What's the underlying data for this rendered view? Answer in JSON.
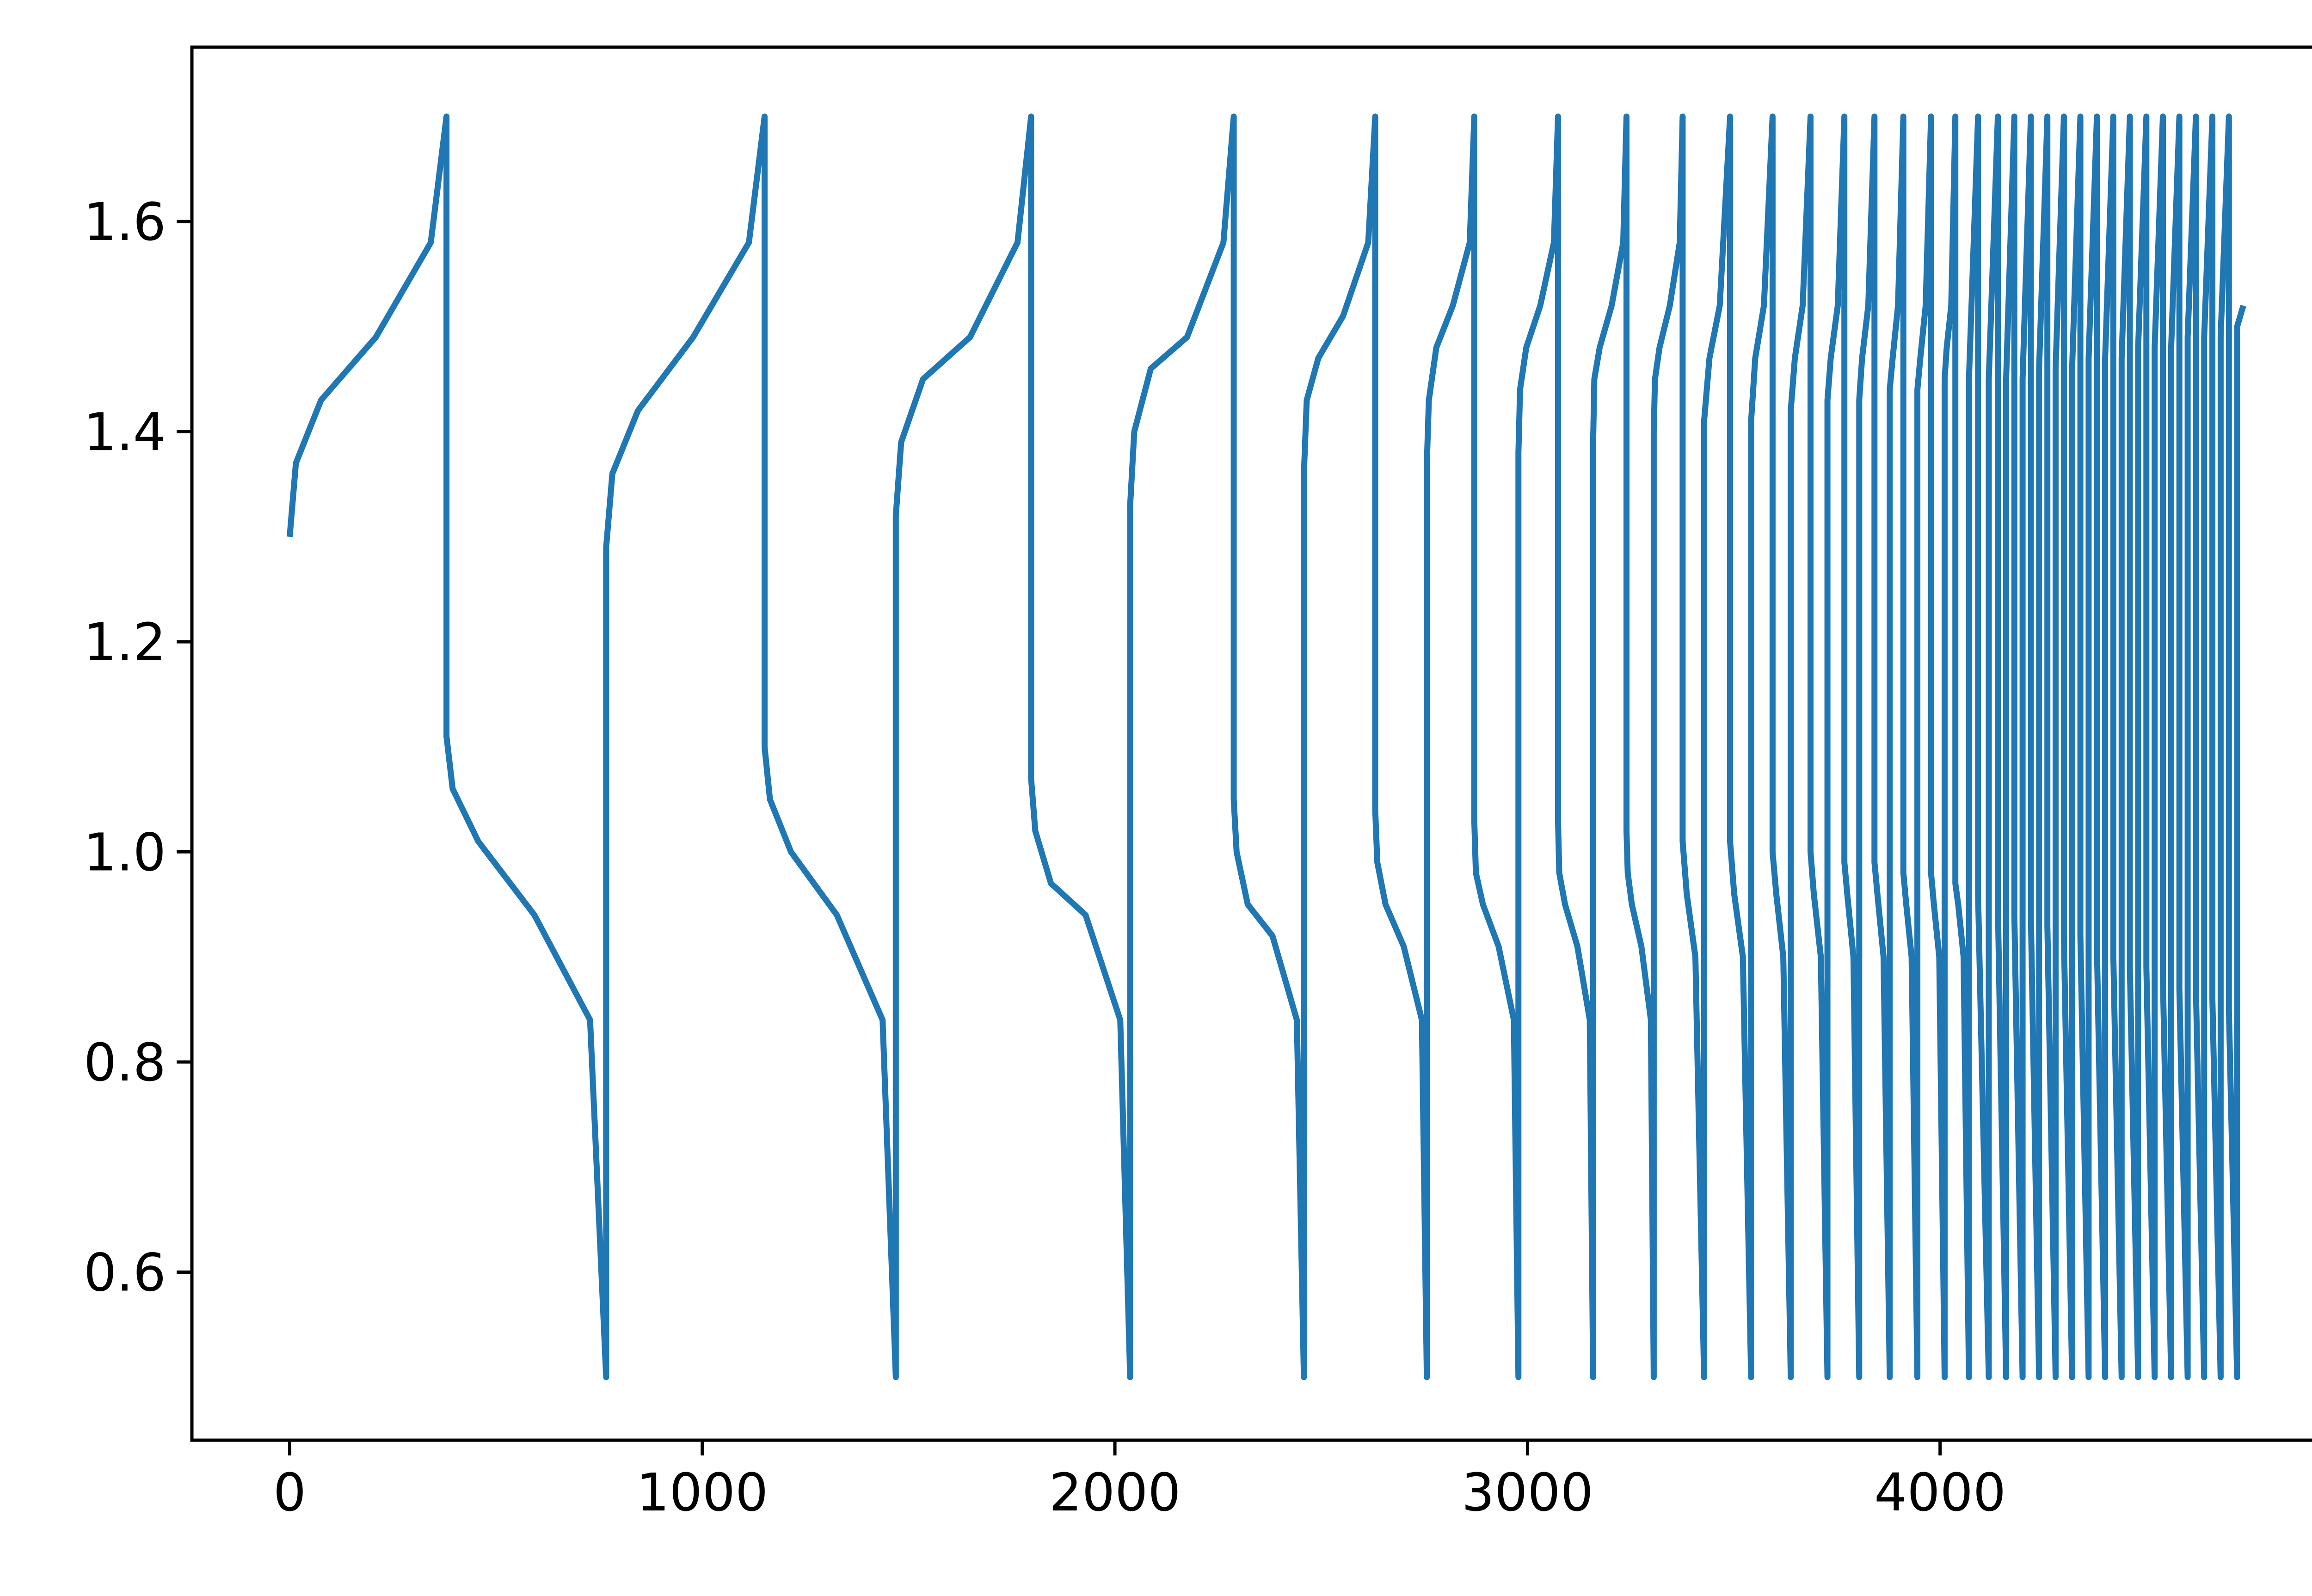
{
  "chart_data": {
    "type": "line",
    "color": "#1f77b4",
    "x": [
      0,
      15,
      76,
      209,
      342,
      380,
      380,
      395,
      457,
      593,
      728,
      767,
      767,
      782,
      844,
      978,
      1113,
      1151,
      1151,
      1164,
      1215,
      1326,
      1437,
      1469,
      1469,
      1482,
      1535,
      1649,
      1764,
      1797,
      1797,
      1807,
      1845,
      1929,
      2013,
      2037,
      2037,
      2047,
      2087,
      2175,
      2263,
      2288,
      2288,
      2295,
      2322,
      2382,
      2441,
      2458,
      2458,
      2465,
      2493,
      2553,
      2614,
      2631,
      2631,
      2636,
      2656,
      2700,
      2744,
      2756,
      2756,
      2761,
      2779,
      2819,
      2860,
      2871,
      2871,
      2875,
      2892,
      2930,
      2967,
      2978,
      2978,
      2982,
      2997,
      3031,
      3064,
      3074,
      3074,
      3077,
      3091,
      3121,
      3151,
      3159,
      3159,
      3162,
      3175,
      3204,
      3232,
      3240,
      3240,
      3243,
      3253,
      3276,
      3299,
      3306,
      3306,
      3309,
      3320,
      3345,
      3369,
      3376,
      3376,
      3386,
      3407,
      3428,
      3428,
      3441,
      3466,
      3491,
      3491,
      3501,
      3522,
      3542,
      3542,
      3552,
      3573,
      3594,
      3594,
      3603,
      3620,
      3638,
      3638,
      3648,
      3667,
      3686,
      3686,
      3694,
      3711,
      3727,
      3727,
      3735,
      3752,
      3768,
      3768,
      3775,
      3790,
      3804,
      3804,
      3811,
      3826,
      3841,
      3841,
      3848,
      3863,
      3878,
      3878,
      3885,
      3898,
      3911,
      3911,
      3918,
      3931,
      3945,
      3945,
      3952,
      3965,
      3978,
      3978,
      3985,
      3998,
      4011,
      4011,
      4016,
      4027,
      4037,
      4037,
      4044,
      4057,
      4070,
      4070,
      4092,
      4092,
      4118,
      4118,
      4140,
      4140,
      4160,
      4160,
      4180,
      4180,
      4200,
      4200,
      4220,
      4220,
      4240,
      4240,
      4260,
      4260,
      4280,
      4280,
      4300,
      4300,
      4320,
      4320,
      4340,
      4340,
      4360,
      4360,
      4380,
      4380,
      4400,
      4400,
      4420,
      4420,
      4440,
      4440,
      4460,
      4460,
      4480,
      4480,
      4500,
      4500,
      4520,
      4520,
      4540,
      4540,
      4560,
      4560,
      4580,
      4580,
      4600,
      4600,
      4620,
      4620,
      4640,
      4640,
      4660,
      4660,
      4680,
      4680,
      4700,
      4700,
      4720,
      4720,
      4735
    ],
    "values": [
      1.3,
      1.37,
      1.43,
      1.49,
      1.58,
      1.7,
      1.11,
      1.06,
      1.01,
      0.94,
      0.84,
      0.5,
      1.29,
      1.36,
      1.42,
      1.49,
      1.58,
      1.7,
      1.1,
      1.05,
      1.0,
      0.94,
      0.84,
      0.5,
      1.32,
      1.39,
      1.45,
      1.49,
      1.58,
      1.7,
      1.07,
      1.02,
      0.97,
      0.94,
      0.84,
      0.5,
      1.33,
      1.4,
      1.46,
      1.49,
      1.58,
      1.7,
      1.05,
      1.0,
      0.95,
      0.92,
      0.84,
      0.5,
      1.36,
      1.43,
      1.47,
      1.51,
      1.58,
      1.7,
      1.04,
      0.99,
      0.95,
      0.91,
      0.84,
      0.5,
      1.37,
      1.43,
      1.48,
      1.52,
      1.58,
      1.7,
      1.03,
      0.98,
      0.95,
      0.91,
      0.84,
      0.5,
      1.38,
      1.44,
      1.48,
      1.52,
      1.58,
      1.7,
      1.03,
      0.98,
      0.95,
      0.91,
      0.84,
      0.5,
      1.39,
      1.45,
      1.48,
      1.52,
      1.58,
      1.7,
      1.02,
      0.98,
      0.95,
      0.91,
      0.84,
      0.5,
      1.4,
      1.45,
      1.48,
      1.52,
      1.58,
      1.7,
      1.01,
      0.96,
      0.9,
      0.5,
      1.41,
      1.47,
      1.52,
      1.7,
      1.01,
      0.96,
      0.9,
      0.5,
      1.41,
      1.47,
      1.52,
      1.7,
      1.0,
      0.96,
      0.9,
      0.5,
      1.42,
      1.47,
      1.52,
      1.7,
      1.0,
      0.96,
      0.9,
      0.5,
      1.43,
      1.47,
      1.52,
      1.7,
      0.99,
      0.96,
      0.9,
      0.5,
      1.43,
      1.47,
      1.52,
      1.7,
      0.99,
      0.96,
      0.9,
      0.5,
      1.44,
      1.47,
      1.52,
      1.7,
      0.98,
      0.95,
      0.9,
      0.5,
      1.44,
      1.47,
      1.52,
      1.7,
      0.98,
      0.95,
      0.9,
      0.5,
      1.45,
      1.48,
      1.52,
      1.7,
      0.97,
      0.95,
      0.9,
      0.5,
      1.45,
      1.7,
      0.96,
      0.5,
      1.45,
      1.7,
      0.95,
      0.5,
      1.45,
      1.7,
      0.94,
      0.5,
      1.45,
      1.7,
      0.94,
      0.5,
      1.46,
      1.7,
      0.93,
      0.5,
      1.46,
      1.7,
      0.92,
      0.5,
      1.46,
      1.7,
      0.92,
      0.5,
      1.47,
      1.7,
      0.91,
      0.5,
      1.47,
      1.7,
      0.9,
      0.5,
      1.47,
      1.7,
      0.89,
      0.5,
      1.48,
      1.7,
      0.89,
      0.5,
      1.48,
      1.7,
      0.88,
      0.5,
      1.48,
      1.7,
      0.87,
      0.5,
      1.49,
      1.7,
      0.87,
      0.5,
      1.49,
      1.7,
      0.86,
      0.5,
      1.49,
      1.7,
      0.85,
      0.5,
      1.5,
      1.52
    ],
    "xlim": [
      -237,
      4972
    ],
    "ylim": [
      0.44,
      1.766
    ],
    "xticks": [
      0,
      1000,
      2000,
      3000,
      4000
    ],
    "yticks": [
      0.6,
      0.8,
      {
        "value": 1.0,
        "label": "1.0"
      },
      1.2,
      1.4,
      1.6
    ]
  }
}
